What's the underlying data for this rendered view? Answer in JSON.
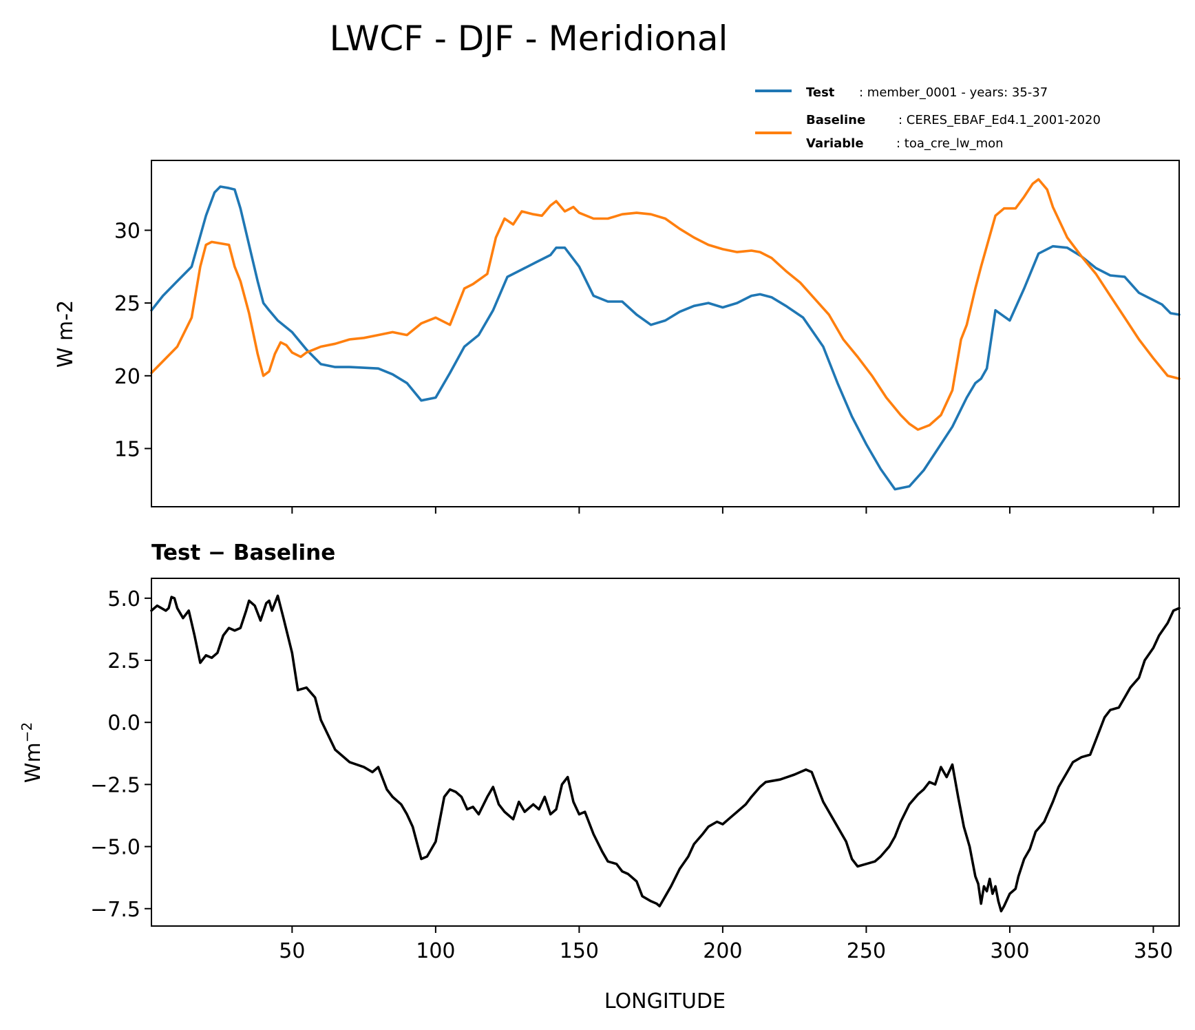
{
  "title": "LWCF - DJF - Meridional",
  "legend": {
    "test": {
      "label": "Test",
      "text": ": member_0001 - years: 35-37",
      "color": "#1f77b4"
    },
    "baseline": {
      "label": "Baseline",
      "text": ": CERES_EBAF_Ed4.1_2001-2020",
      "color": "#ff7f0e"
    },
    "variable": {
      "label": "Variable",
      "text": ": toa_cre_lw_mon"
    }
  },
  "chart_data": [
    {
      "type": "line",
      "ylabel": "W m-2",
      "xlim": [
        1,
        359
      ],
      "ylim": [
        11,
        34.8
      ],
      "yticks": [
        15,
        20,
        25,
        30
      ],
      "ytick_labels": [
        "15",
        "20",
        "25",
        "30"
      ],
      "xticks": [
        50,
        100,
        150,
        200,
        250,
        300,
        350
      ],
      "series": [
        {
          "name": "Test",
          "color": "#1f77b4",
          "x": [
            1,
            5,
            10,
            15,
            20,
            23,
            25,
            28,
            30,
            32,
            35,
            38,
            40,
            42,
            45,
            50,
            55,
            60,
            65,
            70,
            80,
            85,
            90,
            95,
            100,
            105,
            110,
            115,
            120,
            125,
            130,
            135,
            140,
            142,
            145,
            150,
            155,
            160,
            165,
            170,
            175,
            180,
            185,
            190,
            195,
            200,
            205,
            210,
            213,
            217,
            222,
            228,
            235,
            240,
            245,
            250,
            255,
            260,
            265,
            270,
            275,
            280,
            285,
            288,
            290,
            292,
            295,
            300,
            305,
            310,
            315,
            320,
            325,
            330,
            335,
            340,
            345,
            350,
            353,
            356,
            359
          ],
          "values": [
            24.5,
            25.5,
            26.5,
            27.5,
            31,
            32.6,
            33,
            32.9,
            32.8,
            31.5,
            29,
            26.5,
            25,
            24.5,
            23.8,
            23,
            21.8,
            20.8,
            20.6,
            20.6,
            20.5,
            20.1,
            19.5,
            18.3,
            18.5,
            20.2,
            22,
            22.8,
            24.5,
            26.8,
            27.3,
            27.8,
            28.3,
            28.8,
            28.8,
            27.5,
            25.5,
            25.1,
            25.1,
            24.2,
            23.5,
            23.8,
            24.4,
            24.8,
            25,
            24.7,
            25,
            25.5,
            25.6,
            25.4,
            24.8,
            24,
            22,
            19.5,
            17.2,
            15.3,
            13.6,
            12.2,
            12.4,
            13.5,
            15,
            16.5,
            18.5,
            19.5,
            19.8,
            20.5,
            24.5,
            23.8,
            26,
            28.4,
            28.9,
            28.8,
            28.2,
            27.4,
            26.9,
            26.8,
            25.7,
            25.2,
            24.9,
            24.3,
            24.2
          ]
        },
        {
          "name": "Baseline",
          "color": "#ff7f0e",
          "x": [
            1,
            5,
            10,
            15,
            18,
            20,
            22,
            25,
            28,
            30,
            32,
            35,
            38,
            40,
            42,
            44,
            46,
            48,
            50,
            53,
            55,
            60,
            65,
            70,
            75,
            80,
            85,
            90,
            95,
            100,
            105,
            110,
            113,
            118,
            121,
            124,
            127,
            130,
            134,
            137,
            140,
            142,
            145,
            148,
            150,
            155,
            160,
            165,
            170,
            175,
            180,
            185,
            190,
            195,
            200,
            205,
            210,
            213,
            217,
            222,
            227,
            232,
            237,
            242,
            247,
            252,
            257,
            262,
            265,
            268,
            272,
            276,
            280,
            283,
            285,
            288,
            290,
            295,
            298,
            302,
            305,
            308,
            310,
            313,
            315,
            320,
            325,
            330,
            335,
            340,
            345,
            350,
            355,
            359
          ],
          "values": [
            20.2,
            21,
            22,
            24,
            27.5,
            29,
            29.2,
            29.1,
            29,
            27.5,
            26.5,
            24.3,
            21.5,
            20,
            20.3,
            21.5,
            22.3,
            22.1,
            21.6,
            21.3,
            21.6,
            22,
            22.2,
            22.5,
            22.6,
            22.8,
            23,
            22.8,
            23.6,
            24,
            23.5,
            26,
            26.3,
            27,
            29.5,
            30.8,
            30.4,
            31.3,
            31.1,
            31,
            31.7,
            32,
            31.3,
            31.6,
            31.2,
            30.8,
            30.8,
            31.1,
            31.2,
            31.1,
            30.8,
            30.1,
            29.5,
            29,
            28.7,
            28.5,
            28.6,
            28.5,
            28.1,
            27.2,
            26.4,
            25.3,
            24.2,
            22.5,
            21.3,
            20,
            18.5,
            17.3,
            16.7,
            16.3,
            16.6,
            17.3,
            19,
            22.5,
            23.5,
            26,
            27.5,
            31,
            31.5,
            31.5,
            32.3,
            33.2,
            33.5,
            32.8,
            31.6,
            29.5,
            28.2,
            27,
            25.5,
            24,
            22.5,
            21.2,
            20,
            19.8
          ]
        }
      ]
    },
    {
      "type": "line",
      "title": "Test − Baseline",
      "xlabel": "LONGITUDE",
      "ylabel": "Wm−2",
      "ylabel_main": "Wm",
      "ylabel_sup": "−2",
      "xlim": [
        1,
        359
      ],
      "ylim": [
        -8.2,
        5.8
      ],
      "yticks": [
        -7.5,
        -5.0,
        -2.5,
        0.0,
        2.5,
        5.0
      ],
      "ytick_labels": [
        "−7.5",
        "−5.0",
        "−2.5",
        "0.0",
        "2.5",
        "5.0"
      ],
      "xticks": [
        50,
        100,
        150,
        200,
        250,
        300,
        350
      ],
      "xtick_labels": [
        "50",
        "100",
        "150",
        "200",
        "250",
        "300",
        "350"
      ],
      "series": [
        {
          "name": "Test - Baseline",
          "color": "#000000",
          "x": [
            1,
            3,
            6,
            7,
            8,
            9,
            10,
            12,
            14,
            15,
            16,
            18,
            20,
            22,
            24,
            26,
            28,
            30,
            32,
            34,
            35,
            37,
            39,
            41,
            42,
            43,
            45,
            47,
            50,
            52,
            55,
            58,
            60,
            65,
            70,
            75,
            78,
            80,
            83,
            85,
            88,
            90,
            92,
            95,
            97,
            100,
            103,
            105,
            107,
            109,
            111,
            113,
            115,
            118,
            120,
            122,
            124,
            127,
            129,
            131,
            134,
            136,
            138,
            140,
            142,
            144,
            146,
            148,
            150,
            152,
            155,
            158,
            160,
            163,
            165,
            167,
            170,
            172,
            175,
            177,
            178,
            180,
            182,
            185,
            188,
            190,
            193,
            195,
            198,
            200,
            203,
            205,
            208,
            210,
            213,
            215,
            220,
            225,
            227,
            229,
            231,
            233,
            235,
            238,
            240,
            243,
            245,
            247,
            250,
            253,
            255,
            258,
            260,
            262,
            265,
            268,
            270,
            272,
            274,
            276,
            278,
            280,
            282,
            284,
            286,
            288,
            289,
            290,
            291,
            292,
            293,
            294,
            295,
            296,
            297,
            298,
            300,
            302,
            303,
            305,
            307,
            309,
            312,
            315,
            317,
            320,
            322,
            325,
            328,
            330,
            333,
            335,
            338,
            340,
            342,
            345,
            347,
            350,
            352,
            355,
            357,
            359
          ],
          "values": [
            4.5,
            4.7,
            4.5,
            4.6,
            5.05,
            5.0,
            4.6,
            4.2,
            4.5,
            4.0,
            3.5,
            2.4,
            2.7,
            2.6,
            2.8,
            3.5,
            3.8,
            3.7,
            3.8,
            4.5,
            4.9,
            4.7,
            4.1,
            4.8,
            4.9,
            4.5,
            5.1,
            4.2,
            2.8,
            1.3,
            1.4,
            1.0,
            0.1,
            -1.1,
            -1.6,
            -1.8,
            -2.0,
            -1.8,
            -2.7,
            -3.0,
            -3.3,
            -3.7,
            -4.2,
            -5.5,
            -5.4,
            -4.8,
            -3.0,
            -2.7,
            -2.8,
            -3.0,
            -3.5,
            -3.4,
            -3.7,
            -3.0,
            -2.6,
            -3.3,
            -3.6,
            -3.9,
            -3.2,
            -3.6,
            -3.3,
            -3.5,
            -3.0,
            -3.7,
            -3.5,
            -2.5,
            -2.2,
            -3.2,
            -3.7,
            -3.6,
            -4.5,
            -5.2,
            -5.6,
            -5.7,
            -6.0,
            -6.1,
            -6.4,
            -7.0,
            -7.2,
            -7.3,
            -7.4,
            -7.0,
            -6.6,
            -5.9,
            -5.4,
            -4.9,
            -4.5,
            -4.2,
            -4.0,
            -4.1,
            -3.8,
            -3.6,
            -3.3,
            -3.0,
            -2.6,
            -2.4,
            -2.3,
            -2.1,
            -2.0,
            -1.9,
            -2.0,
            -2.6,
            -3.2,
            -3.8,
            -4.2,
            -4.8,
            -5.5,
            -5.8,
            -5.7,
            -5.6,
            -5.4,
            -5.0,
            -4.6,
            -4.0,
            -3.3,
            -2.9,
            -2.7,
            -2.4,
            -2.5,
            -1.8,
            -2.2,
            -1.7,
            -3.0,
            -4.2,
            -5.0,
            -6.2,
            -6.5,
            -7.3,
            -6.6,
            -6.8,
            -6.3,
            -6.9,
            -6.6,
            -7.2,
            -7.6,
            -7.4,
            -6.9,
            -6.7,
            -6.2,
            -5.5,
            -5.1,
            -4.4,
            -4.0,
            -3.2,
            -2.6,
            -2.0,
            -1.6,
            -1.4,
            -1.3,
            -0.7,
            0.2,
            0.5,
            0.6,
            1.0,
            1.4,
            1.8,
            2.5,
            3.0,
            3.5,
            4.0,
            4.5,
            4.6
          ]
        }
      ]
    }
  ]
}
